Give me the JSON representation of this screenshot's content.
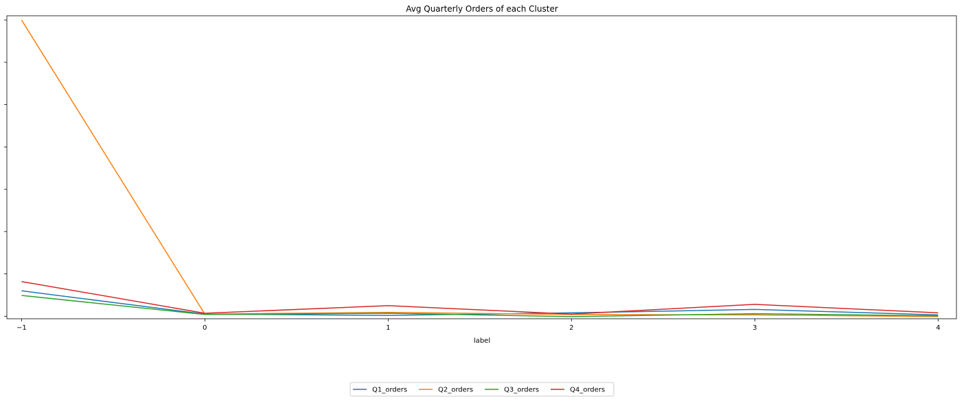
{
  "chart_data": {
    "type": "line",
    "title": "Avg Quarterly Orders of each Cluster",
    "xlabel": "label",
    "ylabel": "",
    "x": [
      -1,
      0,
      1,
      2,
      3,
      4
    ],
    "x_ticks": [
      "−1",
      "0",
      "1",
      "2",
      "3",
      "4"
    ],
    "xlim": [
      -1.08,
      4.1
    ],
    "ylim": [
      -0.06,
      7.1
    ],
    "y_ticklabels_visible": false,
    "series": [
      {
        "name": "Q1_orders",
        "color": "#1f77b4",
        "values": [
          0.6,
          0.05,
          0.02,
          0.08,
          0.16,
          0.03
        ]
      },
      {
        "name": "Q2_orders",
        "color": "#ff7f0e",
        "values": [
          7.0,
          0.05,
          0.09,
          0.04,
          0.03,
          -0.01
        ]
      },
      {
        "name": "Q3_orders",
        "color": "#2ca02c",
        "values": [
          0.49,
          0.04,
          0.07,
          -0.01,
          0.06,
          0.01
        ]
      },
      {
        "name": "Q4_orders",
        "color": "#d62728",
        "values": [
          0.82,
          0.07,
          0.25,
          0.05,
          0.28,
          0.08
        ]
      }
    ],
    "legend": {
      "placement": "bottom-center",
      "ncol": 4
    },
    "grid": false
  }
}
